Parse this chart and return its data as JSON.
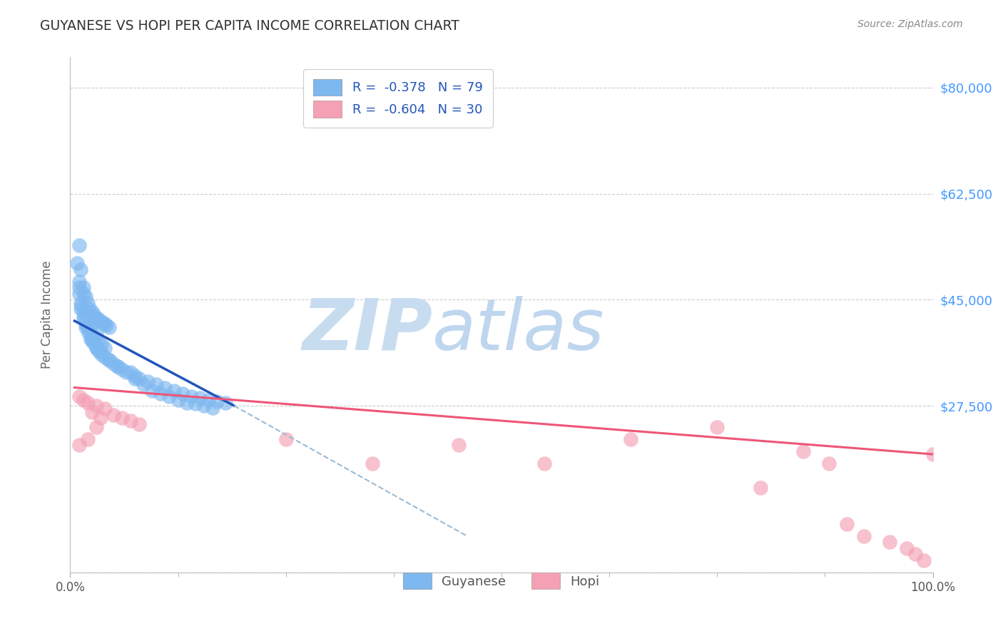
{
  "title": "GUYANESE VS HOPI PER CAPITA INCOME CORRELATION CHART",
  "source": "Source: ZipAtlas.com",
  "ylabel": "Per Capita Income",
  "xlim": [
    0.0,
    100.0
  ],
  "ylim": [
    0,
    85000
  ],
  "yticks": [
    0,
    27500,
    45000,
    62500,
    80000
  ],
  "ytick_labels": [
    "",
    "$27,500",
    "$45,000",
    "$62,500",
    "$80,000"
  ],
  "xtick_positions": [
    0,
    12.5,
    25,
    37.5,
    50,
    62.5,
    75,
    87.5,
    100
  ],
  "guyanese_color": "#7EB8F0",
  "hopi_color": "#F4A0B5",
  "trend_blue": "#2255BB",
  "trend_pink": "#EE5577",
  "background": "#ffffff",
  "grid_color": "#cccccc",
  "watermark_zip_color": "#C8DCF0",
  "watermark_atlas_color": "#B0CCEC",
  "guyanese_x": [
    1.0,
    1.2,
    1.5,
    1.8,
    2.0,
    2.2,
    2.5,
    2.8,
    3.0,
    3.2,
    3.5,
    3.8,
    4.0,
    4.2,
    4.5,
    1.5,
    2.0,
    2.5,
    3.0,
    1.0,
    1.3,
    1.6,
    2.0,
    2.4,
    2.8,
    3.2,
    3.6,
    4.0,
    0.8,
    1.0,
    1.2,
    1.5,
    1.8,
    2.1,
    2.4,
    2.7,
    3.0,
    3.3,
    3.6,
    4.0,
    4.5,
    5.0,
    5.5,
    6.0,
    7.0,
    7.5,
    8.0,
    9.0,
    10.0,
    11.0,
    12.0,
    13.0,
    14.0,
    15.0,
    16.0,
    17.0,
    18.0,
    1.0,
    1.5,
    2.0,
    2.5,
    3.0,
    1.2,
    1.8,
    2.5,
    3.5,
    4.5,
    5.5,
    6.5,
    7.5,
    8.5,
    9.5,
    10.5,
    11.5,
    12.5,
    13.5,
    14.5,
    15.5,
    16.5
  ],
  "guyanese_y": [
    54000,
    50000,
    47000,
    45500,
    44500,
    43500,
    43000,
    42500,
    42000,
    41800,
    41500,
    41200,
    41000,
    40800,
    40500,
    46000,
    43000,
    41000,
    39500,
    48000,
    44000,
    42000,
    40500,
    39500,
    38800,
    38200,
    37600,
    37000,
    51000,
    47000,
    44500,
    42000,
    40500,
    39500,
    38500,
    37800,
    37200,
    36600,
    36000,
    35500,
    35000,
    34500,
    34000,
    33500,
    33000,
    32500,
    32000,
    31500,
    31000,
    30500,
    30000,
    29500,
    29000,
    28800,
    28500,
    28200,
    28000,
    46000,
    43000,
    40500,
    38500,
    37000,
    43500,
    41000,
    38500,
    36500,
    35000,
    34000,
    33000,
    32000,
    31000,
    30000,
    29500,
    29000,
    28500,
    28000,
    27800,
    27500,
    27200
  ],
  "hopi_x": [
    1.0,
    2.0,
    3.0,
    4.0,
    5.0,
    6.0,
    7.0,
    8.0,
    1.5,
    2.5,
    3.5,
    1.0,
    2.0,
    3.0,
    25.0,
    35.0,
    45.0,
    55.0,
    65.0,
    75.0,
    85.0,
    90.0,
    92.0,
    95.0,
    97.0,
    98.0,
    99.0,
    100.0,
    80.0,
    88.0
  ],
  "hopi_y": [
    29000,
    28000,
    27500,
    27000,
    26000,
    25500,
    25000,
    24500,
    28500,
    26500,
    25500,
    21000,
    22000,
    24000,
    22000,
    18000,
    21000,
    18000,
    22000,
    24000,
    20000,
    8000,
    6000,
    5000,
    4000,
    3000,
    2000,
    19500,
    14000,
    18000
  ],
  "blue_trend_x0": 0.5,
  "blue_trend_y0": 41500,
  "blue_trend_x1": 19.0,
  "blue_trend_y1": 27500,
  "pink_trend_x0": 0.5,
  "pink_trend_y0": 30500,
  "pink_trend_x1": 100.0,
  "pink_trend_y1": 19500,
  "dash_x0": 19.0,
  "dash_y0": 27500,
  "dash_x1": 46.0,
  "dash_y1": 6000
}
